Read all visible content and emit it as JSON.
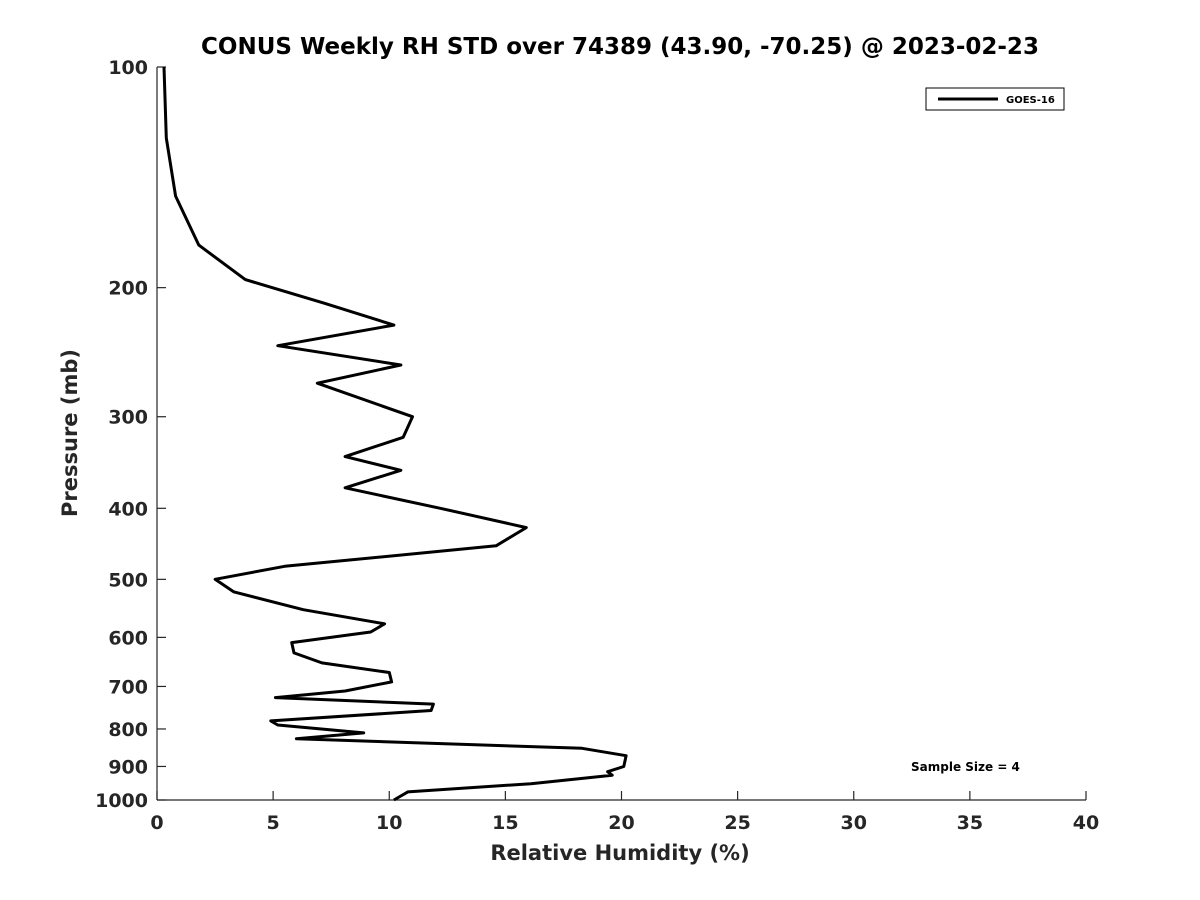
{
  "chart_data": {
    "type": "line",
    "title": "CONUS Weekly RH STD over 74389 (43.90, -70.25) @ 2023-02-23",
    "xlabel": "Relative Humidity (%)",
    "ylabel": "Pressure (mb)",
    "xlim": [
      0,
      40
    ],
    "ylim": [
      100,
      1000
    ],
    "y_scale": "log",
    "y_reversed": true,
    "x_ticks": [
      0,
      5,
      10,
      15,
      20,
      25,
      30,
      35,
      40
    ],
    "y_ticks": [
      100,
      200,
      300,
      400,
      500,
      600,
      700,
      800,
      900,
      1000
    ],
    "grid": false,
    "legend_position": "top-right",
    "series": [
      {
        "name": "GOES-16",
        "color": "#000000",
        "points": [
          [
            0.3,
            100
          ],
          [
            0.4,
            125
          ],
          [
            0.8,
            150
          ],
          [
            1.8,
            175
          ],
          [
            3.8,
            195
          ],
          [
            7.2,
            210
          ],
          [
            10.2,
            225
          ],
          [
            5.2,
            240
          ],
          [
            10.5,
            255
          ],
          [
            6.9,
            270
          ],
          [
            11.0,
            300
          ],
          [
            10.6,
            320
          ],
          [
            8.1,
            340
          ],
          [
            10.5,
            355
          ],
          [
            8.1,
            375
          ],
          [
            12.2,
            400
          ],
          [
            15.9,
            425
          ],
          [
            14.6,
            450
          ],
          [
            5.5,
            480
          ],
          [
            2.5,
            500
          ],
          [
            3.3,
            520
          ],
          [
            6.3,
            550
          ],
          [
            9.8,
            575
          ],
          [
            9.2,
            590
          ],
          [
            5.8,
            610
          ],
          [
            5.9,
            630
          ],
          [
            7.1,
            650
          ],
          [
            10.0,
            670
          ],
          [
            10.1,
            690
          ],
          [
            8.1,
            710
          ],
          [
            5.1,
            725
          ],
          [
            11.9,
            740
          ],
          [
            11.8,
            755
          ],
          [
            4.9,
            780
          ],
          [
            5.2,
            790
          ],
          [
            8.9,
            810
          ],
          [
            6.0,
            825
          ],
          [
            18.3,
            850
          ],
          [
            20.2,
            870
          ],
          [
            20.1,
            900
          ],
          [
            19.4,
            915
          ],
          [
            19.6,
            925
          ],
          [
            16.1,
            950
          ],
          [
            10.8,
            975
          ],
          [
            10.2,
            1000
          ]
        ]
      }
    ]
  },
  "annotation": "Sample Size = 4"
}
